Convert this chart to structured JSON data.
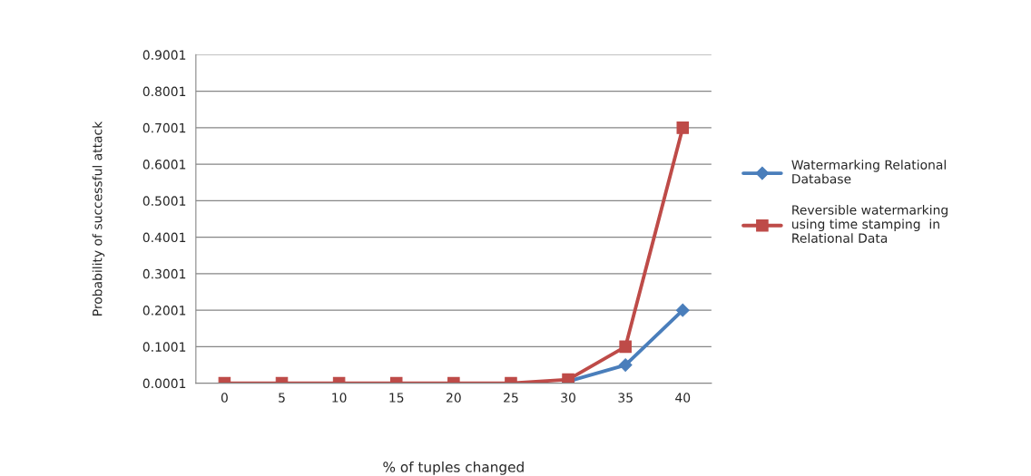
{
  "chart_data": {
    "type": "line",
    "xlabel": "% of tuples changed",
    "ylabel": "Probability of successful attack",
    "categories": [
      "0",
      "5",
      "10",
      "15",
      "20",
      "25",
      "30",
      "35",
      "40"
    ],
    "series": [
      {
        "name": "Watermarking Relational Database",
        "color": "#4a7ebb",
        "marker": "diamond",
        "values": [
          null,
          null,
          null,
          null,
          null,
          null,
          0.005,
          0.05,
          0.2001
        ]
      },
      {
        "name": "Reversible watermarking using time stamping  in Relational Data",
        "color": "#be4b48",
        "marker": "square",
        "values": [
          0.0001,
          0.0001,
          0.0001,
          0.0001,
          0.0001,
          0.0001,
          0.01,
          0.1001,
          0.7001
        ]
      }
    ],
    "ylim": [
      0.0001,
      0.9001
    ],
    "yticks": [
      0.0001,
      0.1001,
      0.2001,
      0.3001,
      0.4001,
      0.5001,
      0.6001,
      0.7001,
      0.8001,
      0.9001
    ],
    "grid": "y",
    "legend": "right",
    "line_style": "solid"
  }
}
